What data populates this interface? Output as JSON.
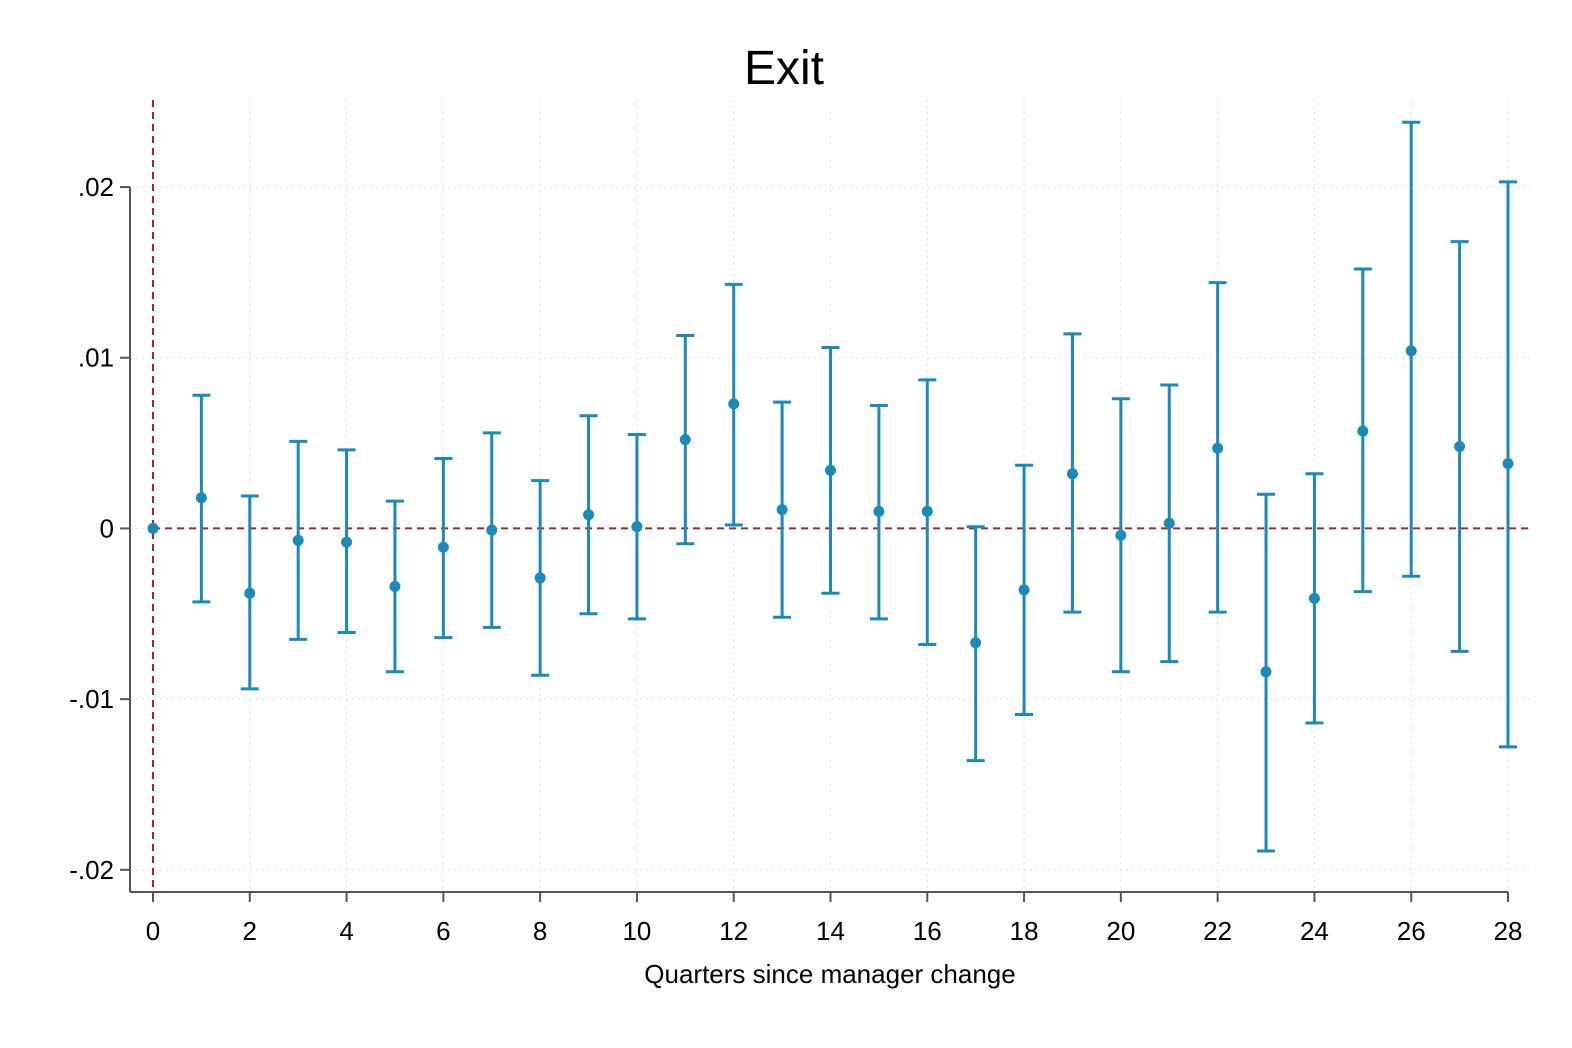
{
  "chart_data": {
    "type": "scatter",
    "title": "Exit",
    "xlabel": "Quarters since manager change",
    "ylabel": "",
    "xlim": [
      0,
      28
    ],
    "ylim": [
      -0.0213,
      0.0251
    ],
    "x_ticks": [
      0,
      2,
      4,
      6,
      8,
      10,
      12,
      14,
      16,
      18,
      20,
      22,
      24,
      26,
      28
    ],
    "x_tick_labels": [
      "0",
      "2",
      "4",
      "6",
      "8",
      "10",
      "12",
      "14",
      "16",
      "18",
      "20",
      "22",
      "24",
      "26",
      "28"
    ],
    "y_ticks": [
      0.02,
      0.01,
      0,
      -0.01,
      -0.02
    ],
    "y_tick_labels": [
      ".02",
      ".01",
      "0",
      "-.01",
      "-.02"
    ],
    "grid": true,
    "reference_lines": {
      "x": 0,
      "y": 0,
      "style": "dashed",
      "color": "#a02c2c"
    },
    "series": [
      {
        "color": "#1a8ab8",
        "points": [
          {
            "x": 0,
            "y": 0.0,
            "lo": 0.0,
            "hi": 0.0
          },
          {
            "x": 1,
            "y": 0.0018,
            "lo": -0.0043,
            "hi": 0.0078
          },
          {
            "x": 2,
            "y": -0.0038,
            "lo": -0.0094,
            "hi": 0.0019
          },
          {
            "x": 3,
            "y": -0.0007,
            "lo": -0.0065,
            "hi": 0.0051
          },
          {
            "x": 4,
            "y": -0.0008,
            "lo": -0.0061,
            "hi": 0.0046
          },
          {
            "x": 5,
            "y": -0.0034,
            "lo": -0.0084,
            "hi": 0.0016
          },
          {
            "x": 6,
            "y": -0.0011,
            "lo": -0.0064,
            "hi": 0.0041
          },
          {
            "x": 7,
            "y": -0.0001,
            "lo": -0.0058,
            "hi": 0.0056
          },
          {
            "x": 8,
            "y": -0.0029,
            "lo": -0.0086,
            "hi": 0.0028
          },
          {
            "x": 9,
            "y": 0.0008,
            "lo": -0.005,
            "hi": 0.0066
          },
          {
            "x": 10,
            "y": 0.0001,
            "lo": -0.0053,
            "hi": 0.0055
          },
          {
            "x": 11,
            "y": 0.0052,
            "lo": -0.0009,
            "hi": 0.0113
          },
          {
            "x": 12,
            "y": 0.0073,
            "lo": 0.0002,
            "hi": 0.0143
          },
          {
            "x": 13,
            "y": 0.0011,
            "lo": -0.0052,
            "hi": 0.0074
          },
          {
            "x": 14,
            "y": 0.0034,
            "lo": -0.0038,
            "hi": 0.0106
          },
          {
            "x": 15,
            "y": 0.001,
            "lo": -0.0053,
            "hi": 0.0072
          },
          {
            "x": 16,
            "y": 0.001,
            "lo": -0.0068,
            "hi": 0.0087
          },
          {
            "x": 17,
            "y": -0.0067,
            "lo": -0.0136,
            "hi": 0.0001
          },
          {
            "x": 18,
            "y": -0.0036,
            "lo": -0.0109,
            "hi": 0.0037
          },
          {
            "x": 19,
            "y": 0.0032,
            "lo": -0.0049,
            "hi": 0.0114
          },
          {
            "x": 20,
            "y": -0.0004,
            "lo": -0.0084,
            "hi": 0.0076
          },
          {
            "x": 21,
            "y": 0.0003,
            "lo": -0.0078,
            "hi": 0.0084
          },
          {
            "x": 22,
            "y": 0.0047,
            "lo": -0.0049,
            "hi": 0.0144
          },
          {
            "x": 23,
            "y": -0.0084,
            "lo": -0.0189,
            "hi": 0.002
          },
          {
            "x": 24,
            "y": -0.0041,
            "lo": -0.0114,
            "hi": 0.0032
          },
          {
            "x": 25,
            "y": 0.0057,
            "lo": -0.0037,
            "hi": 0.0152
          },
          {
            "x": 26,
            "y": 0.0104,
            "lo": -0.0028,
            "hi": 0.0238
          },
          {
            "x": 27,
            "y": 0.0048,
            "lo": -0.0072,
            "hi": 0.0168
          },
          {
            "x": 28,
            "y": 0.0038,
            "lo": -0.0128,
            "hi": 0.0203
          }
        ]
      }
    ]
  }
}
